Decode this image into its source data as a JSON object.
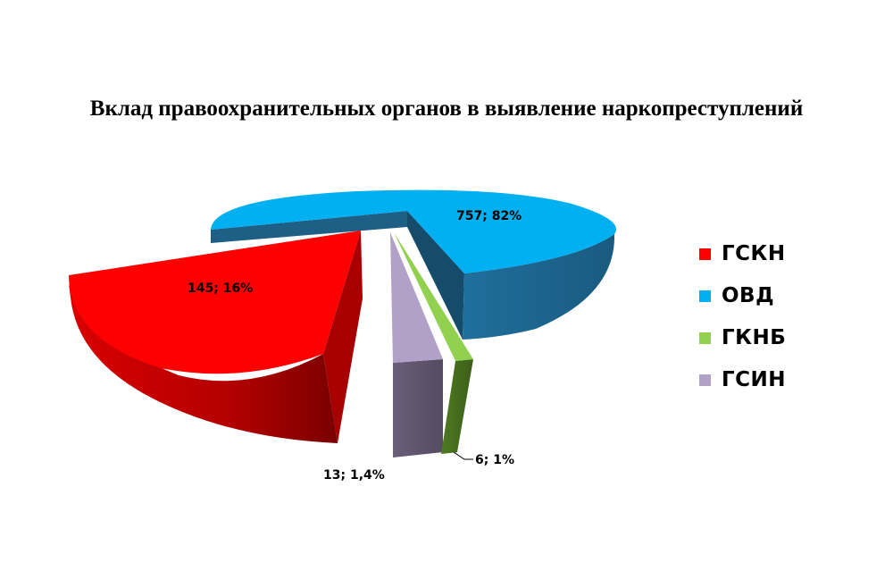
{
  "chart_data": {
    "type": "pie",
    "title": "Вклад правоохранительных органов в выявление наркопреступлений",
    "slices": [
      {
        "name": "ГСКН",
        "value": 145,
        "percent_label": "145; 16%",
        "color": "#ff0000"
      },
      {
        "name": "ОВД",
        "value": 757,
        "percent_label": "757; 82%",
        "color": "#00b0f0"
      },
      {
        "name": "ГКНБ",
        "value": 6,
        "percent_label": "6; 1%",
        "color": "#92d050"
      },
      {
        "name": "ГСИН",
        "value": 13,
        "percent_label": "13; 1,4%",
        "color": "#b1a0c7"
      }
    ],
    "legend_position": "right",
    "style": "3d-exploded"
  }
}
